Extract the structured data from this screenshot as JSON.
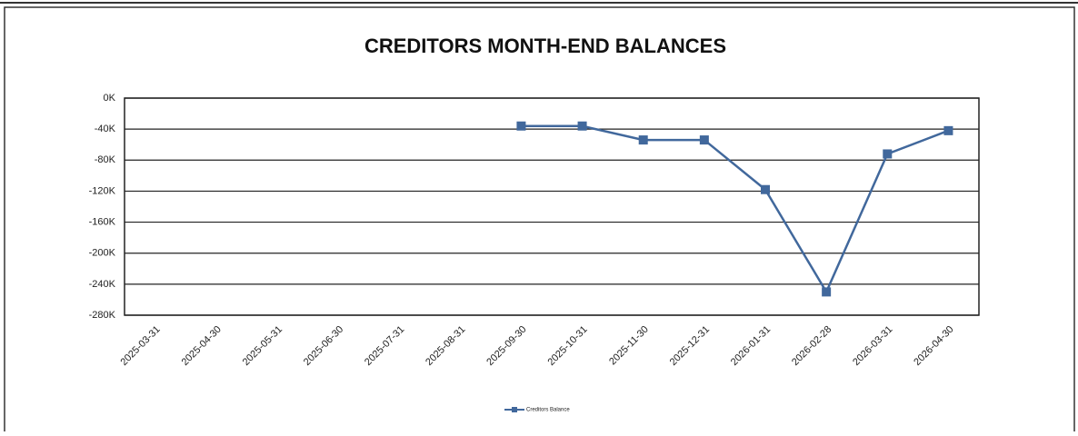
{
  "chart_data": {
    "type": "line",
    "title": "CREDITORS MONTH-END BALANCES",
    "categories": [
      "2025-03-31",
      "2025-04-30",
      "2025-05-31",
      "2025-06-30",
      "2025-07-31",
      "2025-08-31",
      "2025-09-30",
      "2025-10-31",
      "2025-11-30",
      "2025-12-31",
      "2026-01-31",
      "2026-02-28",
      "2026-03-31",
      "2026-04-30"
    ],
    "series": [
      {
        "name": "Creditors Balance",
        "color": "#41689c",
        "values": [
          null,
          null,
          null,
          null,
          null,
          null,
          -36000,
          -36000,
          -54000,
          -54000,
          -118000,
          -250000,
          -72000,
          -42000
        ]
      }
    ],
    "ylim": [
      -280000,
      0
    ],
    "yticks": [
      {
        "value": 0,
        "label": "0K"
      },
      {
        "value": -40000,
        "label": "-40K"
      },
      {
        "value": -80000,
        "label": "-80K"
      },
      {
        "value": -120000,
        "label": "-120K"
      },
      {
        "value": -160000,
        "label": "-160K"
      },
      {
        "value": -200000,
        "label": "-200K"
      },
      {
        "value": -240000,
        "label": "-240K"
      },
      {
        "value": -280000,
        "label": "-280K"
      }
    ],
    "grid": true,
    "legend": "bottom"
  }
}
